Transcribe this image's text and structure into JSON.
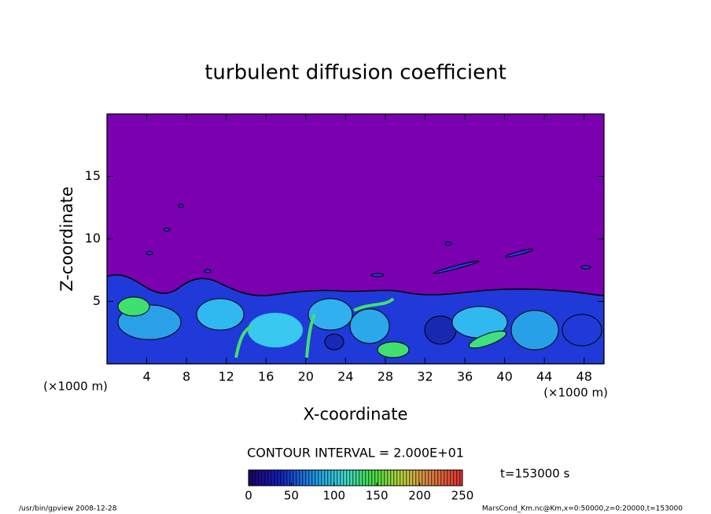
{
  "chart_data": {
    "type": "contour",
    "title": "turbulent diffusion coefficient",
    "x_label": "X-coordinate",
    "y_label": "Z-coordinate",
    "x_unit": "(×1000 m)",
    "y_unit": "(×1000 m)",
    "xlim": [
      0,
      50
    ],
    "xticks": [
      4,
      8,
      12,
      16,
      20,
      24,
      28,
      32,
      36,
      40,
      44,
      48
    ],
    "ylim": [
      0,
      20
    ],
    "yticks": [
      5,
      10,
      15
    ],
    "colorbar": {
      "lim": [
        0,
        250
      ],
      "ticks": [
        0,
        50,
        100,
        150,
        200,
        250
      ]
    },
    "contour_interval": "CONTOUR INTERVAL = 2.000E+01",
    "time_label": "t=153000 s",
    "footer_left": "/usr/bin/gpview  2008-12-28",
    "footer_right": "MarsCond_Km.nc@Km,x=0:50000,z=0:20000,t=153000"
  }
}
